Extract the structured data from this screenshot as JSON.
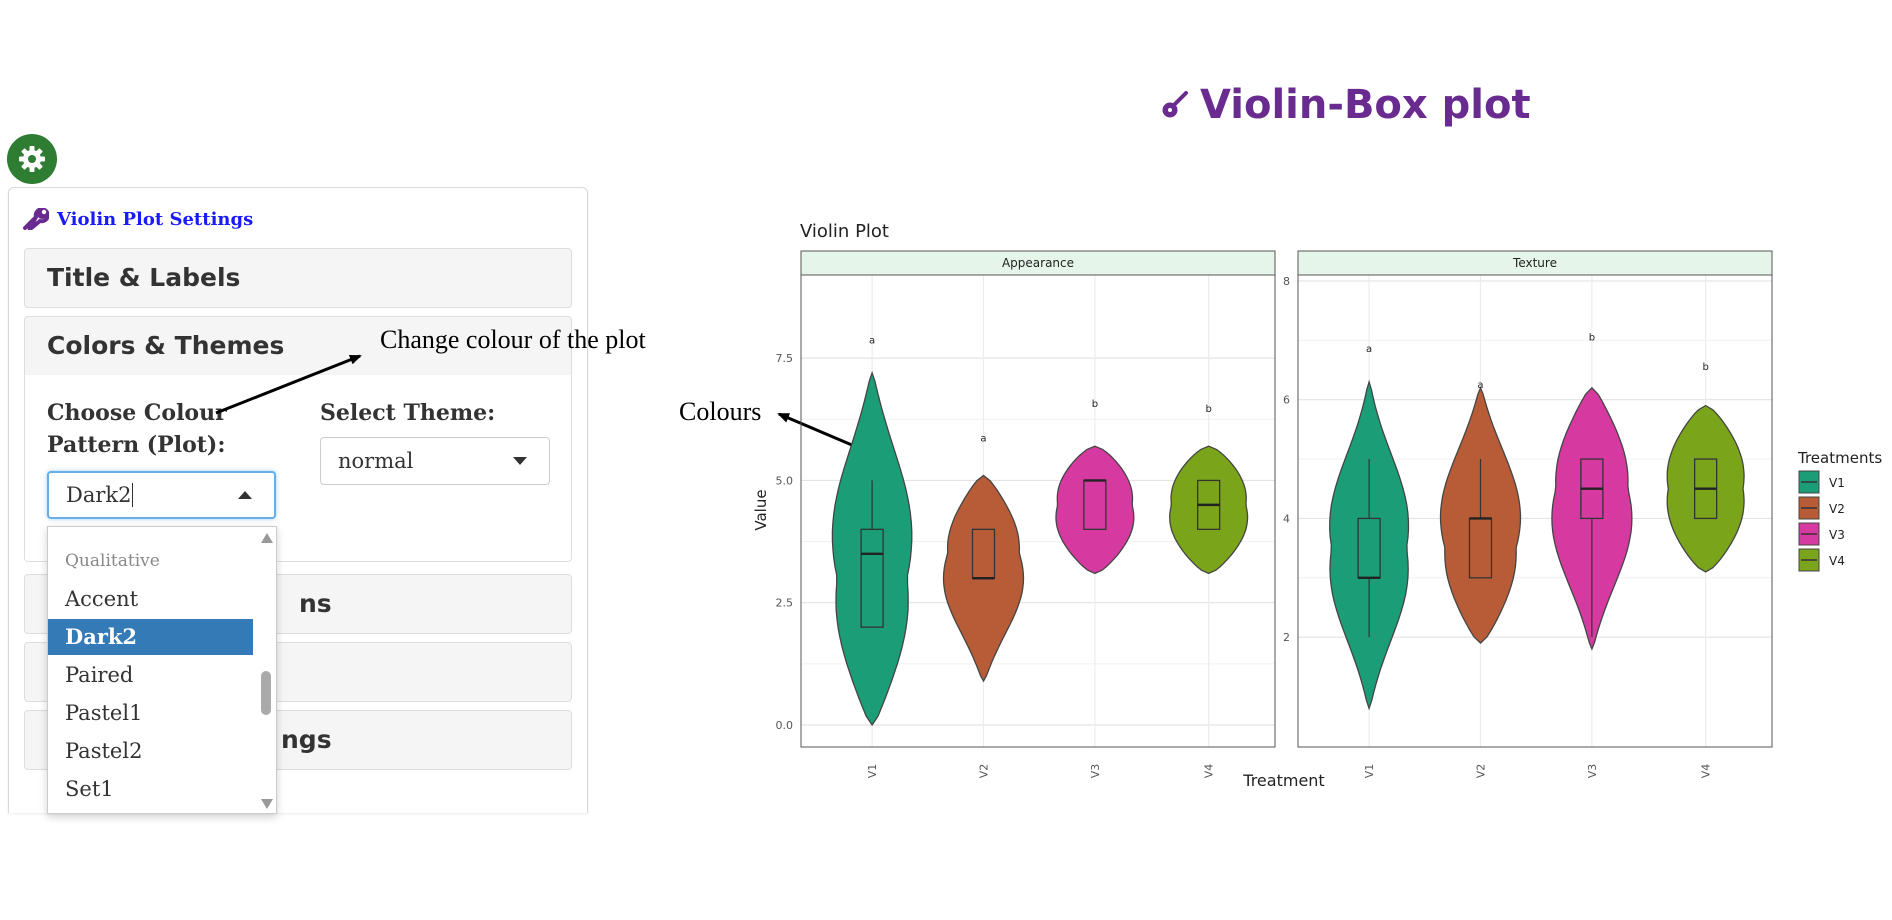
{
  "app": {
    "title": "Violin-Box plot"
  },
  "settings": {
    "title": "Violin Plot Settings",
    "sections": [
      {
        "label": "Title & Labels"
      },
      {
        "label": "Colors & Themes"
      },
      {
        "label": "ns"
      },
      {
        "label": ""
      },
      {
        "label": "ngs"
      }
    ],
    "colour_label_1": "Choose Colour",
    "colour_label_2": "Pattern (Plot):",
    "colour_value": "Dark2",
    "theme_label": "Select Theme:",
    "theme_value": "normal",
    "dropdown": {
      "group": "Qualitative",
      "options": [
        "Accent",
        "Dark2",
        "Paired",
        "Pastel1",
        "Pastel2",
        "Set1"
      ],
      "selected": "Dark2"
    }
  },
  "annotations": {
    "change_colour": "Change colour of the plot",
    "colours": "Colours"
  },
  "colors": {
    "accent_purple": "#6a2b90",
    "settings_title": "#1a1aff",
    "gear_green": "#2e7d32",
    "selected_option": "#337ab7"
  },
  "chart_data": {
    "type": "violin",
    "title": "Violin Plot",
    "xlabel": "Treatment",
    "ylabel": "Value",
    "categories": [
      "V1",
      "V2",
      "V3",
      "V4"
    ],
    "series_colors": {
      "V1": "#1b9e77",
      "V2": "#b85c38",
      "V3": "#d63aa1",
      "V4": "#7aa51a"
    },
    "legend": {
      "title": "Treatments",
      "items": [
        "V1",
        "V2",
        "V3",
        "V4"
      ],
      "position": "right"
    },
    "facets": [
      {
        "name": "Appearance",
        "ylim": [
          -0.45,
          9.2
        ],
        "yticks": [
          0.0,
          2.5,
          5.0,
          7.5
        ],
        "yticklabels": [
          "0.0",
          "2.5",
          "5.0",
          "7.5"
        ],
        "groups": [
          {
            "category": "V1",
            "min": 0,
            "max": 7.2,
            "q1": 2,
            "median": 3.5,
            "q3": 4,
            "whisker_lo": 2,
            "whisker_hi": 5,
            "letter": "a",
            "letter_y": 7.8
          },
          {
            "category": "V2",
            "min": 0.9,
            "max": 5.1,
            "q1": 3,
            "median": 3,
            "q3": 4,
            "whisker_lo": 3,
            "whisker_hi": 4,
            "letter": "a",
            "letter_y": 5.8
          },
          {
            "category": "V3",
            "min": 3.1,
            "max": 5.7,
            "q1": 4,
            "median": 5,
            "q3": 5,
            "whisker_lo": 4,
            "whisker_hi": 5,
            "letter": "b",
            "letter_y": 6.5
          },
          {
            "category": "V4",
            "min": 3.1,
            "max": 5.7,
            "q1": 4,
            "median": 4.5,
            "q3": 5,
            "whisker_lo": 4,
            "whisker_hi": 5,
            "letter": "b",
            "letter_y": 6.4
          }
        ]
      },
      {
        "name": "Texture",
        "ylim": [
          0.15,
          8.1
        ],
        "yticks": [
          2,
          4,
          6,
          8
        ],
        "yticklabels": [
          "2",
          "4",
          "6",
          "8"
        ],
        "groups": [
          {
            "category": "V1",
            "min": 0.8,
            "max": 6.3,
            "q1": 3,
            "median": 3,
            "q3": 4,
            "whisker_lo": 2,
            "whisker_hi": 5,
            "letter": "a",
            "letter_y": 6.8
          },
          {
            "category": "V2",
            "min": 1.9,
            "max": 6.2,
            "q1": 3,
            "median": 4,
            "q3": 4,
            "whisker_lo": 3,
            "whisker_hi": 5,
            "letter": "a",
            "letter_y": 6.2
          },
          {
            "category": "V3",
            "min": 1.8,
            "max": 6.2,
            "q1": 4,
            "median": 4.5,
            "q3": 5,
            "whisker_lo": 2,
            "whisker_hi": 5,
            "letter": "b",
            "letter_y": 7.0
          },
          {
            "category": "V4",
            "min": 3.1,
            "max": 5.9,
            "q1": 4,
            "median": 4.5,
            "q3": 5,
            "whisker_lo": 4,
            "whisker_hi": 5,
            "letter": "b",
            "letter_y": 6.5
          }
        ]
      }
    ]
  }
}
